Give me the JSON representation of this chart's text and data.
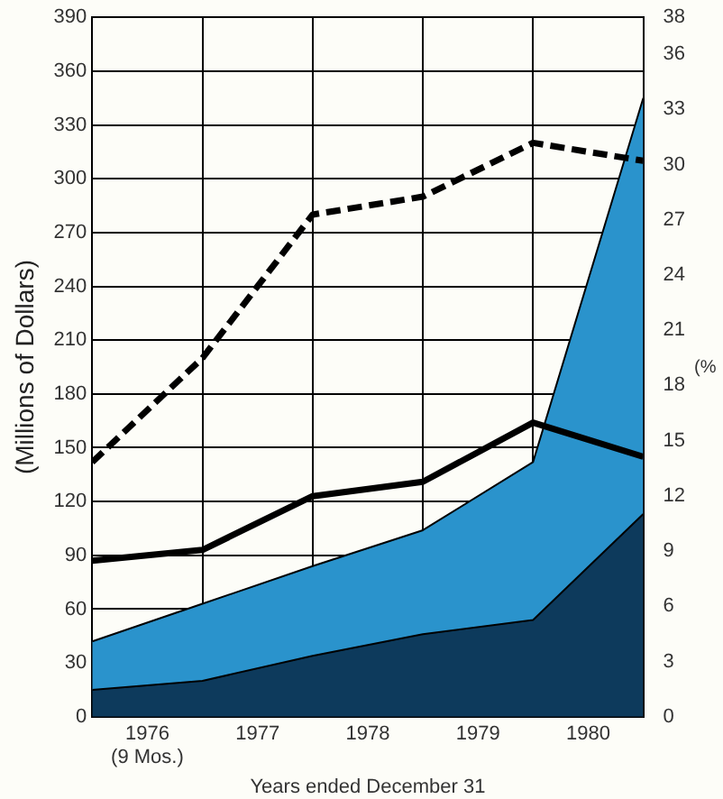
{
  "chart_data": {
    "type": "area",
    "xlabel": "Years ended December 31",
    "ylabel": "(Millions of Dollars)",
    "y2label": "(%",
    "x": [
      1975.5,
      1976.5,
      1977.5,
      1978.5,
      1979.5,
      1980.5
    ],
    "xlim": [
      1975.5,
      1980.5
    ],
    "xticks": [
      {
        "value": 1976,
        "label": "1976\n(9 Mos.)"
      },
      1977,
      1978,
      1979,
      1980,
      {
        "value": 1976.5,
        "label": null
      },
      {
        "value": 1977.5,
        "label": null
      },
      {
        "value": 1978.5,
        "label": null
      },
      {
        "value": 1979.5,
        "label": null
      }
    ],
    "ylim": [
      0,
      390
    ],
    "yticks": [
      0,
      30,
      60,
      90,
      120,
      150,
      180,
      210,
      240,
      270,
      300,
      330,
      360,
      390
    ],
    "y2lim": [
      0,
      38
    ],
    "y2ticks": [
      0,
      3,
      6,
      9,
      12,
      15,
      18,
      21,
      24,
      27,
      30,
      33,
      36,
      38
    ],
    "stacked": true,
    "grid": true,
    "legend": false,
    "series": [
      {
        "type": "area",
        "color": "#0d3a5c",
        "values": [
          15,
          20,
          34,
          46,
          54,
          113
        ]
      },
      {
        "type": "area",
        "color": "#2a93cc",
        "values": [
          27,
          43,
          50,
          58,
          88,
          232
        ]
      },
      {
        "type": "line",
        "color": "#000000",
        "line_style": "solid",
        "marker": "none",
        "values": [
          87,
          93,
          123,
          131,
          164,
          145
        ]
      },
      {
        "type": "line",
        "color": "#000000",
        "line_style": "dashed",
        "marker": "none",
        "values": [
          142,
          200,
          280,
          290,
          320,
          310
        ]
      }
    ]
  }
}
